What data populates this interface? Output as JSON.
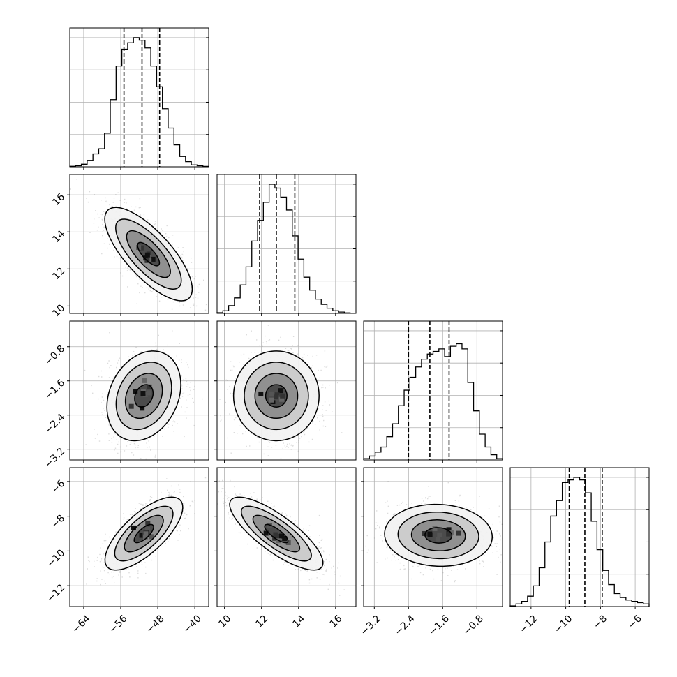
{
  "chart_data": {
    "type": "corner",
    "parameters": [
      {
        "range": [
          -67,
          -37
        ],
        "ticks": [
          -64,
          -56,
          -48,
          -40
        ],
        "tick_labels": [
          "−64",
          "−56",
          "−48",
          "−40"
        ],
        "quantiles": [
          -55.3,
          -51.4,
          -47.6
        ],
        "hist": [
          0.004,
          0.008,
          0.02,
          0.05,
          0.1,
          0.14,
          0.26,
          0.52,
          0.78,
          0.91,
          0.96,
          1.0,
          0.98,
          0.92,
          0.78,
          0.62,
          0.45,
          0.3,
          0.17,
          0.08,
          0.04,
          0.015,
          0.008,
          0.003
        ]
      },
      {
        "range": [
          9.6,
          17.1
        ],
        "ticks": [
          10,
          12,
          14,
          16
        ],
        "tick_labels": [
          "10",
          "12",
          "14",
          "16"
        ],
        "quantiles": [
          11.9,
          12.8,
          13.8
        ],
        "hist": [
          0.005,
          0.02,
          0.06,
          0.12,
          0.22,
          0.36,
          0.56,
          0.72,
          0.86,
          1.0,
          0.97,
          0.9,
          0.8,
          0.6,
          0.42,
          0.28,
          0.18,
          0.11,
          0.07,
          0.04,
          0.02,
          0.01,
          0.004,
          0.002
        ]
      },
      {
        "range": [
          -3.45,
          -0.2
        ],
        "ticks": [
          -3.2,
          -2.4,
          -1.6,
          -0.8
        ],
        "tick_labels": [
          "−3.2",
          "−2.4",
          "−1.6",
          "−0.8"
        ],
        "quantiles": [
          -2.4,
          -1.9,
          -1.45
        ],
        "hist": [
          0.01,
          0.03,
          0.06,
          0.1,
          0.18,
          0.28,
          0.42,
          0.54,
          0.64,
          0.72,
          0.78,
          0.82,
          0.84,
          0.86,
          0.8,
          0.88,
          0.9,
          0.86,
          0.6,
          0.38,
          0.2,
          0.1,
          0.04,
          0.01
        ]
      },
      {
        "range": [
          -13.2,
          -5.2
        ],
        "ticks": [
          -12,
          -10,
          -8,
          -6
        ],
        "tick_labels": [
          "−12",
          "−10",
          "−8",
          "−6"
        ],
        "quantiles": [
          -9.8,
          -8.9,
          -7.9
        ],
        "hist": [
          0.005,
          0.02,
          0.04,
          0.08,
          0.16,
          0.3,
          0.5,
          0.7,
          0.82,
          0.96,
          0.98,
          1.0,
          0.98,
          0.88,
          0.66,
          0.44,
          0.28,
          0.17,
          0.1,
          0.07,
          0.05,
          0.04,
          0.03,
          0.02
        ]
      }
    ],
    "pairs": [
      {
        "x": 0,
        "y": 1,
        "center": [
          -50,
          12.8
        ],
        "sd": [
          4.5,
          1.2
        ],
        "rho": -0.75
      },
      {
        "x": 0,
        "y": 2,
        "center": [
          -51,
          -1.95
        ],
        "sd": [
          3.8,
          0.5
        ],
        "rho": 0.25
      },
      {
        "x": 1,
        "y": 2,
        "center": [
          12.8,
          -1.95
        ],
        "sd": [
          1.1,
          0.5
        ],
        "rho": 0.0
      },
      {
        "x": 0,
        "y": 3,
        "center": [
          -51,
          -9.0
        ],
        "sd": [
          4.0,
          1.0
        ],
        "rho": 0.72
      },
      {
        "x": 1,
        "y": 3,
        "center": [
          12.8,
          -9.0
        ],
        "sd": [
          1.2,
          1.0
        ],
        "rho": -0.8
      },
      {
        "x": 2,
        "y": 3,
        "center": [
          -1.7,
          -9.1
        ],
        "sd": [
          0.6,
          0.85
        ],
        "rho": -0.05
      }
    ],
    "grid": true,
    "contour_levels_sigma": [
      0.5,
      1.0,
      1.5,
      2.0
    ]
  }
}
